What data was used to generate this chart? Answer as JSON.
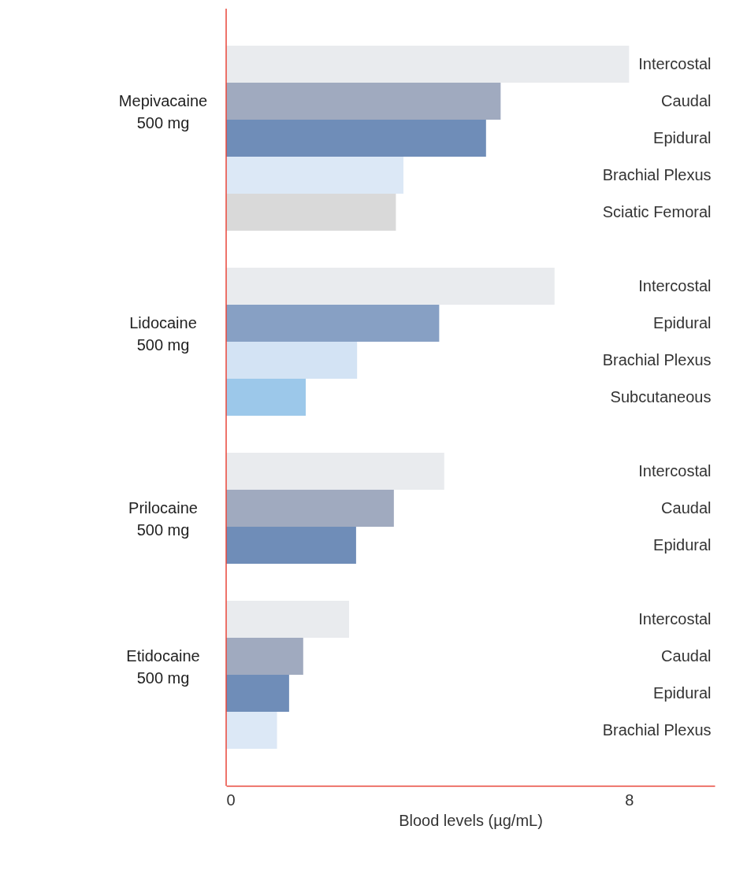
{
  "chart_data": {
    "type": "bar",
    "orientation": "horizontal",
    "xlabel": "Blood levels (µg/mL)",
    "categories": [
      "Intercostal",
      "Caudal",
      "Epidural",
      "Brachial Plexus",
      "Sciatic Femoral",
      "Intercostal",
      "Epidural",
      "Brachial Plexus",
      "Subcutaneous",
      "Intercostal",
      "Caudal",
      "Epidural",
      "Intercostal",
      "Caudal",
      "Epidural",
      "Brachial Plexus"
    ],
    "series": [
      {
        "name": "Mepivacaine\n500 mg",
        "colors": [
          "#e9ebee",
          "#a0aabf",
          "#6f8db8",
          "#dce8f6",
          "#d9d9d9",
          null,
          null,
          null,
          null,
          null,
          null,
          null,
          null,
          null,
          null,
          null
        ],
        "values": [
          8.0,
          5.45,
          5.16,
          3.52,
          3.37,
          null,
          null,
          null,
          null,
          null,
          null,
          null,
          null,
          null,
          null,
          null
        ]
      },
      {
        "name": "Lidocaine\n500 mg",
        "colors": [
          null,
          null,
          null,
          null,
          null,
          "#e9ebee",
          "#87a0c4",
          "#d3e3f4",
          "#9cc8ea",
          null,
          null,
          null,
          null,
          null,
          null,
          null
        ],
        "values": [
          null,
          null,
          null,
          null,
          null,
          6.52,
          4.23,
          2.6,
          1.58,
          null,
          null,
          null,
          null,
          null,
          null,
          null
        ]
      },
      {
        "name": "Prilocaine\n500 mg",
        "colors": [
          null,
          null,
          null,
          null,
          null,
          null,
          null,
          null,
          null,
          "#e9ebee",
          "#a0aabf",
          "#6f8db8",
          null,
          null,
          null,
          null
        ],
        "values": [
          null,
          null,
          null,
          null,
          null,
          null,
          null,
          null,
          null,
          4.33,
          3.33,
          2.58,
          null,
          null,
          null,
          null
        ]
      },
      {
        "name": "Etidocaine\n500 mg",
        "colors": [
          null,
          null,
          null,
          null,
          null,
          null,
          null,
          null,
          null,
          null,
          null,
          null,
          "#e9ebee",
          "#a0aabf",
          "#6f8db8",
          "#dce8f6"
        ],
        "values": [
          null,
          null,
          null,
          null,
          null,
          null,
          null,
          null,
          null,
          null,
          null,
          null,
          2.44,
          1.53,
          1.25,
          1.01
        ]
      }
    ],
    "xlim": [
      0,
      9.7
    ],
    "xticks": [
      0,
      8
    ],
    "grid": false
  }
}
